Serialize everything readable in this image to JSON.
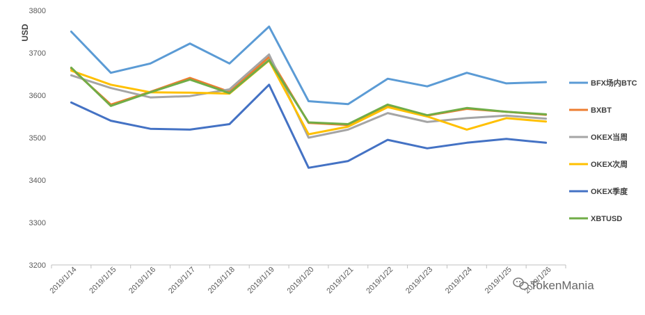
{
  "chart_data": {
    "type": "line",
    "title": "",
    "xlabel": "",
    "ylabel": "USD",
    "ylim": [
      3200,
      3800
    ],
    "yticks": [
      3200,
      3300,
      3400,
      3500,
      3600,
      3700,
      3800
    ],
    "grid": false,
    "legend_position": "right",
    "categories": [
      "2019/1/14",
      "2019/1/15",
      "2019/1/16",
      "2019/1/17",
      "2019/1/18",
      "2019/1/19",
      "2019/1/20",
      "2019/1/21",
      "2019/1/22",
      "2019/1/23",
      "2019/1/24",
      "2019/1/25",
      "2019/1/26"
    ],
    "series": [
      {
        "name": "BFX场内BTC",
        "color": "#5B9BD5",
        "values": [
          3750,
          3653,
          3675,
          3722,
          3675,
          3762,
          3586,
          3579,
          3639,
          3621,
          3653,
          3628,
          3631
        ]
      },
      {
        "name": "BXBT",
        "color": "#ED7D31",
        "values": [
          3663,
          3578,
          3608,
          3641,
          3608,
          3690,
          3535,
          3530,
          3576,
          3552,
          3568,
          3561,
          3554
        ]
      },
      {
        "name": "OKEX当周",
        "color": "#A5A5A5",
        "values": [
          3647,
          3617,
          3595,
          3598,
          3614,
          3696,
          3500,
          3519,
          3558,
          3537,
          3546,
          3552,
          3545
        ]
      },
      {
        "name": "OKEX次周",
        "color": "#FFC000",
        "values": [
          3658,
          3625,
          3607,
          3606,
          3604,
          3682,
          3508,
          3526,
          3572,
          3550,
          3519,
          3546,
          3538
        ]
      },
      {
        "name": "OKEX季度",
        "color": "#4472C4",
        "values": [
          3583,
          3540,
          3521,
          3519,
          3532,
          3625,
          3429,
          3445,
          3495,
          3475,
          3488,
          3497,
          3488
        ]
      },
      {
        "name": "XBTUSD",
        "color": "#70AD47",
        "values": [
          3665,
          3575,
          3607,
          3637,
          3605,
          3683,
          3536,
          3532,
          3578,
          3553,
          3570,
          3561,
          3555
        ]
      }
    ]
  },
  "watermark": {
    "text": "TokenMania",
    "icon": "wechat-icon"
  }
}
